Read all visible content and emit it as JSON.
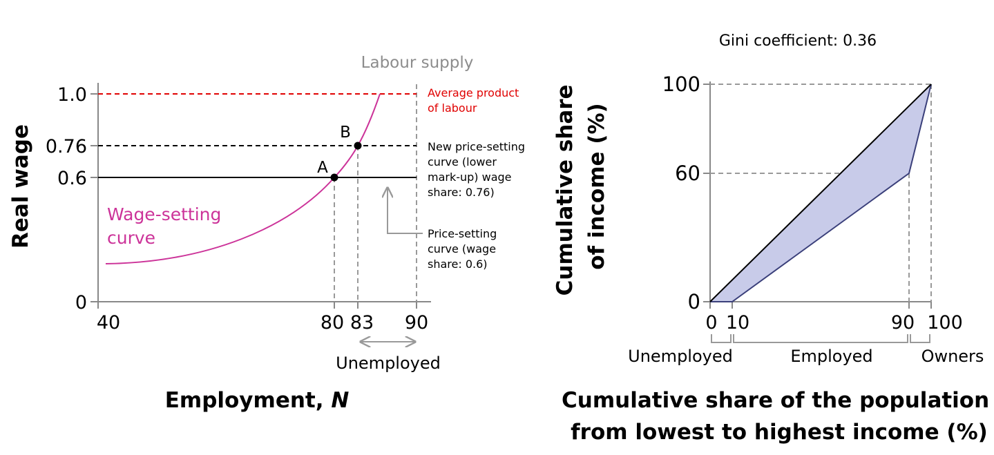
{
  "chart_data": [
    {
      "type": "line",
      "title": "",
      "xlabel": "Employment, ",
      "xlabel_italic": "N",
      "ylabel": "Real wage",
      "xlim": [
        40,
        92
      ],
      "ylim": [
        0,
        1.1
      ],
      "xticks": [
        "40",
        "80",
        "83",
        "90"
      ],
      "yticks": [
        "0",
        "0.6",
        "0.76",
        "1.0"
      ],
      "series": [
        {
          "name": "Wage-setting curve",
          "label_lines": [
            "Wage-setting",
            "curve"
          ],
          "color": "#cc3399",
          "x": [
            41,
            50,
            60,
            70,
            75,
            80,
            83,
            85,
            86
          ],
          "y": [
            0.18,
            0.21,
            0.28,
            0.41,
            0.49,
            0.6,
            0.76,
            0.92,
            1.0
          ]
        },
        {
          "name": "Average product of labour",
          "label_lines": [
            "Average product",
            "of labour"
          ],
          "color": "#e00000",
          "y": 1.0
        },
        {
          "name": "New price-setting curve",
          "label_lines": [
            "New price-setting",
            "curve (lower",
            "mark-up) wage",
            "share: 0.76)"
          ],
          "y": 0.76
        },
        {
          "name": "Price-setting curve",
          "label_lines": [
            "Price-setting",
            "curve (wage",
            "share: 0.6)"
          ],
          "y": 0.6
        }
      ],
      "points": [
        {
          "label": "A",
          "x": 80,
          "y": 0.6
        },
        {
          "label": "B",
          "x": 83,
          "y": 0.76
        }
      ],
      "annotations": {
        "labour_supply": {
          "label": "Labour supply",
          "x": 90
        },
        "unemployed": {
          "label": "Unemployed",
          "from": 83,
          "to": 90
        }
      }
    },
    {
      "type": "area",
      "title": "Gini coefficient: 0.36",
      "xlabel_lines": [
        "Cumulative share of the population",
        "from lowest to highest income (%)"
      ],
      "ylabel_lines": [
        "Cumulative share",
        "of income (%)"
      ],
      "xlim": [
        0,
        100
      ],
      "ylim": [
        0,
        100
      ],
      "xticks": [
        "0",
        "10",
        "90",
        "100"
      ],
      "yticks": [
        "0",
        "60",
        "100"
      ],
      "series": [
        {
          "name": "Line of perfect equality",
          "x": [
            0,
            100
          ],
          "y": [
            0,
            100
          ],
          "color": "#000000"
        },
        {
          "name": "Lorenz curve",
          "x": [
            0,
            10,
            90,
            100
          ],
          "y": [
            0,
            0,
            60,
            100
          ],
          "color": "#3a3f7a",
          "fill": "#c8cbe9"
        }
      ],
      "groups": [
        {
          "label": "Unemployed",
          "from": 0,
          "to": 10
        },
        {
          "label": "Employed",
          "from": 10,
          "to": 90
        },
        {
          "label": "Owners",
          "from": 90,
          "to": 100
        }
      ]
    }
  ]
}
